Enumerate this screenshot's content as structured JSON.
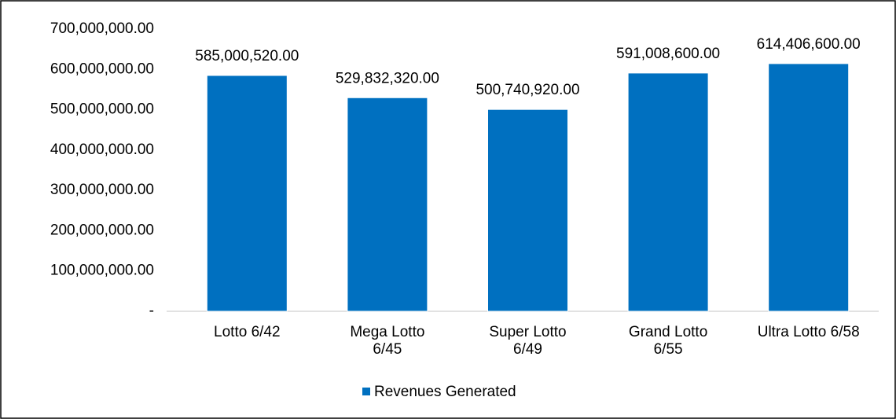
{
  "chart_data": {
    "type": "bar",
    "categories": [
      "Lotto 6/42",
      "Mega Lotto 6/45",
      "Super Lotto 6/49",
      "Grand Lotto 6/55",
      "Ultra Lotto 6/58"
    ],
    "series": [
      {
        "name": "Revenues Generated",
        "color": "#0070c0",
        "values": [
          585000520,
          529832320,
          500740920,
          591008600,
          614406600
        ],
        "value_labels": [
          "585,000,520.00",
          "529,832,320.00",
          "500,740,920.00",
          "591,008,600.00",
          "614,406,600.00"
        ]
      }
    ],
    "ylim": [
      0,
      700000000
    ],
    "yticks": [
      {
        "value": 0,
        "label": "-"
      },
      {
        "value": 100000000,
        "label": "100,000,000.00"
      },
      {
        "value": 200000000,
        "label": "200,000,000.00"
      },
      {
        "value": 300000000,
        "label": "300,000,000.00"
      },
      {
        "value": 400000000,
        "label": "400,000,000.00"
      },
      {
        "value": 500000000,
        "label": "500,000,000.00"
      },
      {
        "value": 600000000,
        "label": "600,000,000.00"
      },
      {
        "value": 700000000,
        "label": "700,000,000.00"
      }
    ],
    "grid": false,
    "legend": "bottom"
  }
}
